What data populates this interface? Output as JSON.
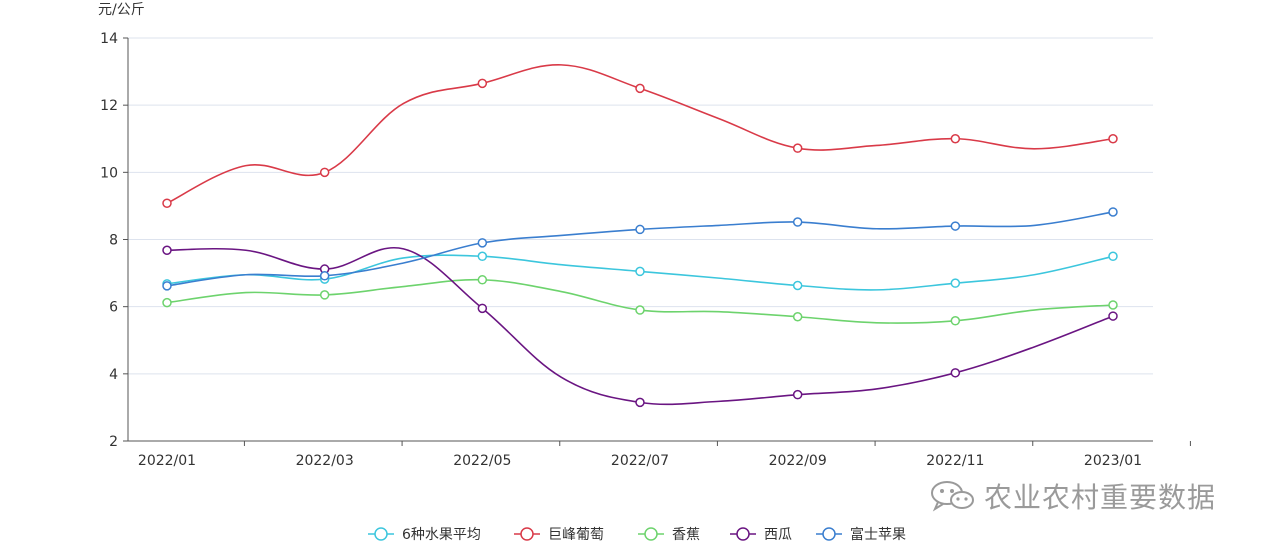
{
  "chart_data": {
    "type": "line",
    "title": "",
    "ylabel": "元/公斤",
    "xlabel": "",
    "x": [
      "2022/01",
      "2022/02",
      "2022/03",
      "2022/04",
      "2022/05",
      "2022/06",
      "2022/07",
      "2022/08",
      "2022/09",
      "2022/10",
      "2022/11",
      "2022/12",
      "2023/01"
    ],
    "x_tick_labels": [
      "2022/01",
      "2022/03",
      "2022/05",
      "2022/07",
      "2022/09",
      "2022/11",
      "2023/01"
    ],
    "ylim": [
      2,
      14
    ],
    "y_ticks": [
      "2",
      "4",
      "6",
      "8",
      "10",
      "12",
      "14"
    ],
    "grid": true,
    "legend_position": "bottom",
    "series": [
      {
        "name": "6种水果平均",
        "color": "#3cc6dd",
        "values": [
          6.68,
          6.95,
          6.82,
          7.45,
          7.5,
          7.25,
          7.05,
          6.85,
          6.63,
          6.5,
          6.7,
          6.95,
          7.5
        ]
      },
      {
        "name": "巨峰葡萄",
        "color": "#d93a48",
        "values": [
          9.08,
          10.2,
          10.0,
          12.05,
          12.65,
          13.2,
          12.5,
          11.6,
          10.72,
          10.8,
          11.0,
          10.7,
          11.0
        ]
      },
      {
        "name": "香蕉",
        "color": "#6dd36d",
        "values": [
          6.12,
          6.42,
          6.35,
          6.6,
          6.8,
          6.45,
          5.9,
          5.85,
          5.7,
          5.52,
          5.58,
          5.9,
          6.05
        ]
      },
      {
        "name": "西瓜",
        "color": "#6a1582",
        "values": [
          7.68,
          7.68,
          7.12,
          7.72,
          5.95,
          3.9,
          3.15,
          3.18,
          3.38,
          3.55,
          4.03,
          4.8,
          5.72
        ]
      },
      {
        "name": "富士苹果",
        "color": "#3a7ecf",
        "values": [
          6.62,
          6.95,
          6.92,
          7.3,
          7.9,
          8.12,
          8.3,
          8.42,
          8.52,
          8.32,
          8.4,
          8.42,
          8.82
        ]
      }
    ]
  },
  "watermark": {
    "text": "农业农村重要数据",
    "icon": "wechat-icon"
  }
}
